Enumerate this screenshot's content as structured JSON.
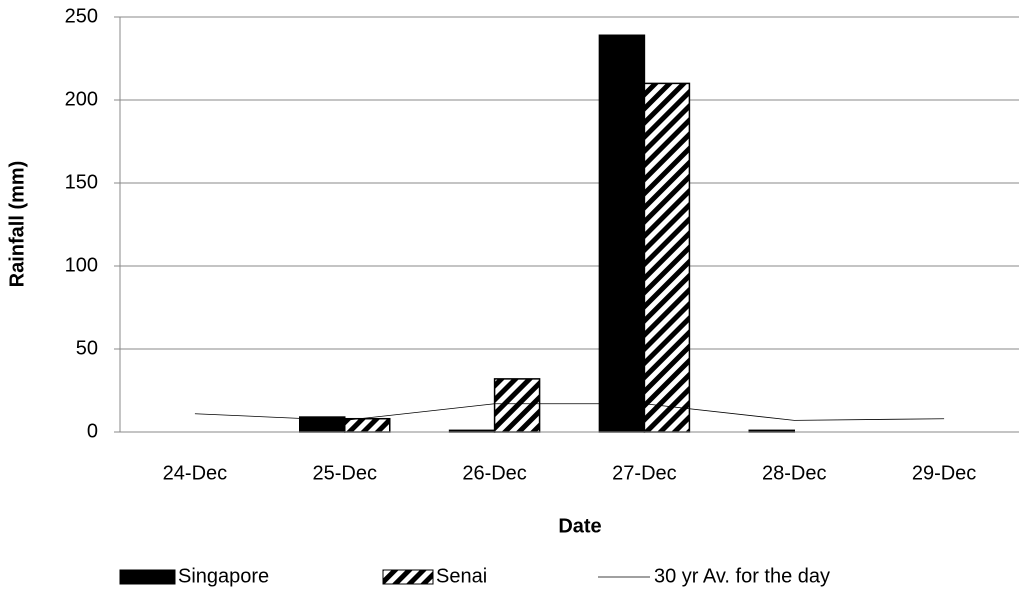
{
  "chart_data": {
    "type": "bar",
    "x_label": "Date",
    "y_label": "Rainfall (mm)",
    "categories": [
      "24-Dec",
      "25-Dec",
      "26-Dec",
      "27-Dec",
      "28-Dec",
      "29-Dec"
    ],
    "series": [
      {
        "name": "Singapore",
        "color": "#000000",
        "fill": "solid",
        "values": [
          0,
          9,
          1,
          239,
          1,
          0
        ]
      },
      {
        "name": "Senai",
        "color": "#000000",
        "fill": "hatch",
        "values": [
          0,
          8,
          32,
          210,
          0,
          0
        ]
      },
      {
        "name": "30 yr Av. for the day",
        "color": "#000000",
        "type": "line",
        "values": [
          11,
          7,
          17,
          17,
          7,
          8
        ]
      }
    ],
    "ylim": [
      0,
      250
    ],
    "yticks": [
      0,
      50,
      100,
      150,
      200,
      250
    ],
    "grid": true,
    "legend": "bottom"
  }
}
